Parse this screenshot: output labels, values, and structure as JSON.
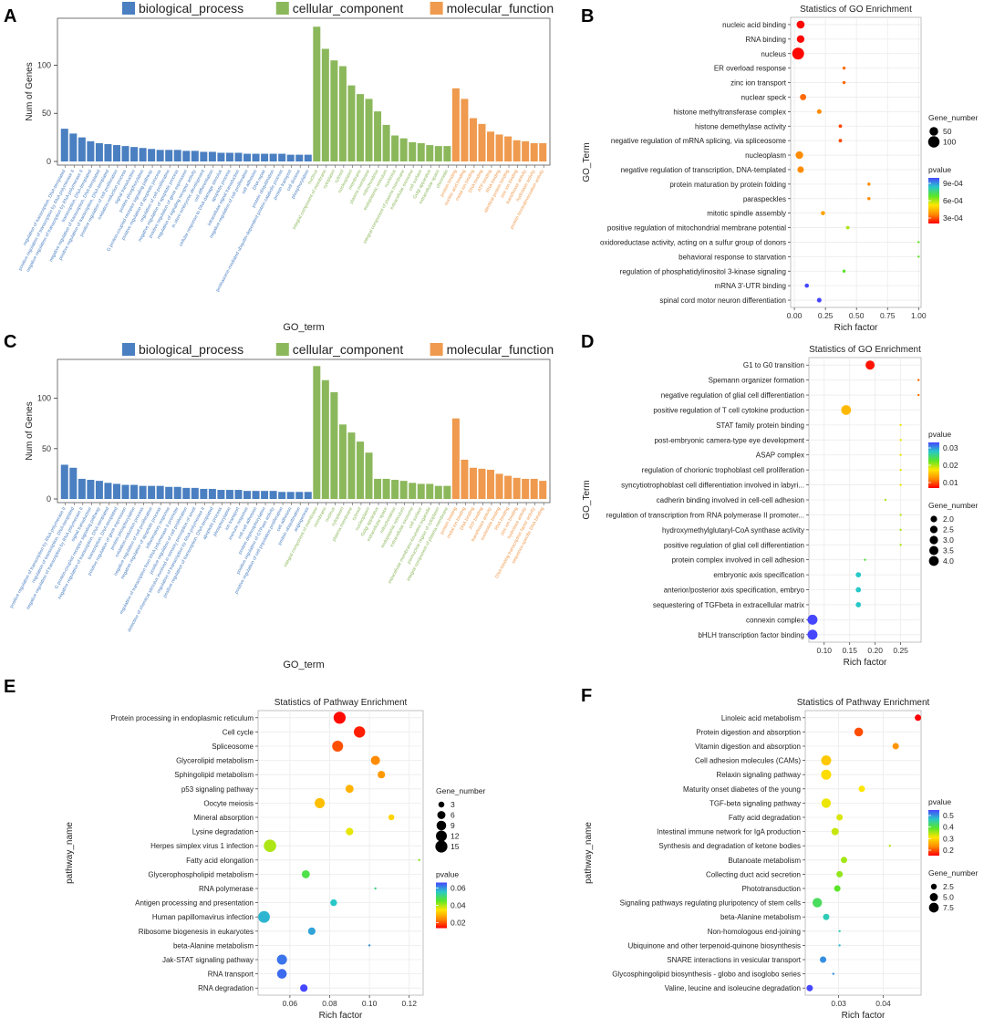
{
  "colors": {
    "biological_process": "#4a7fc1",
    "cellular_component": "#8cb85c",
    "molecular_function": "#ef9a4e",
    "panel_bg": "#ffffff",
    "grid": "#ebebeb",
    "pvalue_low": "#ff0000",
    "pvalue_high": "#2b2bff"
  },
  "chart_data": [
    {
      "id": "A",
      "panel_label": "A",
      "type": "bar",
      "xlabel": "GO_term",
      "ylabel": "Num of Genes",
      "ylim": [
        0,
        145
      ],
      "yticks": [
        0,
        50,
        100
      ],
      "legend": [
        "biological_process",
        "cellular_component",
        "molecular_function"
      ],
      "series": [
        {
          "name": "biological_process",
          "values": [
            34,
            29,
            25,
            21,
            19,
            18,
            17,
            16,
            15,
            14,
            13,
            12,
            12,
            12,
            11,
            11,
            10,
            10,
            9,
            9,
            9,
            8,
            8,
            8,
            8,
            8,
            7,
            7,
            7
          ]
        },
        {
          "name": "cellular_component",
          "values": [
            140,
            117,
            105,
            99,
            79,
            70,
            65,
            52,
            38,
            27,
            24,
            20,
            19,
            17,
            16,
            16
          ]
        },
        {
          "name": "molecular_function",
          "values": [
            76,
            65,
            45,
            39,
            31,
            28,
            26,
            22,
            21,
            19,
            19
          ]
        }
      ],
      "categories": {
        "biological_process": [
          "regulation of transcription, DNA-templated",
          "positive regulation of transcription by RNA polymerase II",
          "negative regulation of transcription by RNA polymerase II",
          "transcription, DNA-templated",
          "negative regulation of transcription, DNA-templated",
          "positive regulation of transcription, DNA-templated",
          "positive regulation of cell proliferation",
          "oxidation-reduction process",
          "signal transduction",
          "protein phosphorylation",
          "G protein-coupled receptor signaling pathway",
          "positive regulation of apoptotic process",
          "regulation of cell proliferation",
          "negative regulation of apoptotic process",
          "positive regulation of gene expression",
          "regulation of signaling receptor activity",
          "in utero embryonic development",
          "cell differentiation",
          "cellular response to DNA damage stimulus",
          "apoptotic process",
          "intracellular signal transduction",
          "negative regulation of cell proliferation",
          "cell adhesion",
          "DNA repair",
          "protein ubiquitination",
          "proteasome-mediated ubiquitin-dependent protein catabolic process",
          "protein transport",
          "cell division",
          "phosphorylation"
        ],
        "cellular_component": [
          "nucleus",
          "integral component of membrane",
          "cytoplasm",
          "cytosol",
          "nucleoplasm",
          "membrane",
          "plasma membrane",
          "mitochondrion",
          "endoplasmic reticulum",
          "nucleolus",
          "integral component of plasma membrane",
          "extracellular exosome",
          "cell surface",
          "Golgi apparatus",
          "extracellular space",
          "chromatin"
        ],
        "molecular_function": [
          "protein binding",
          "nucleic acid binding",
          "metal ion binding",
          "DNA binding",
          "ATP binding",
          "RNA binding",
          "identical protein binding",
          "zinc ion binding",
          "transferase activity",
          "hydrolase activity",
          "protein homodimerization activity"
        ]
      }
    },
    {
      "id": "B",
      "panel_label": "B",
      "type": "scatter",
      "title": "Statistics of GO Enrichment",
      "xlabel": "Rich factor",
      "ylabel": "GO_Term",
      "xlim": [
        -0.03,
        1.02
      ],
      "xticks": [
        "0.00",
        "0.25",
        "0.50",
        "0.75",
        "1.00"
      ],
      "size_legend_title": "Gene_number",
      "size_legend": [
        50,
        100
      ],
      "color_legend_title": "pvalue",
      "color_legend": [
        "9e-04",
        "6e-04",
        "3e-04"
      ],
      "color_range": [
        0.0,
        0.001
      ],
      "size_range": [
        1,
        110
      ],
      "terms": [
        "nucleic acid binding",
        "RNA binding",
        "nucleus",
        "ER overload response",
        "zinc ion transport",
        "nuclear speck",
        "histone methyltransferase complex",
        "histone demethylase activity",
        "negative regulation of mRNA splicing, via spliceosome",
        "nucleoplasm",
        "negative regulation of transcription, DNA-templated",
        "protein maturation by protein folding",
        "paraspeckles",
        "mitotic spindle assembly",
        "positive regulation of mitochondrial membrane potential",
        "oxidoreductase activity, acting on a sulfur group of donors",
        "behavioral response to starvation",
        "regulation of phosphatidylinositol 3-kinase signaling",
        "mRNA 3'-UTR binding",
        "spinal cord motor neuron differentiation"
      ],
      "rich_factor": [
        0.05,
        0.05,
        0.03,
        0.4,
        0.4,
        0.07,
        0.2,
        0.37,
        0.37,
        0.04,
        0.05,
        0.6,
        0.6,
        0.23,
        0.43,
        1.0,
        1.0,
        0.4,
        0.1,
        0.2
      ],
      "gene_number": [
        40,
        35,
        110,
        2,
        2,
        20,
        8,
        3,
        3,
        35,
        22,
        2,
        2,
        6,
        3,
        1,
        1,
        2,
        6,
        8
      ],
      "pvalue": [
        1e-05,
        1e-05,
        1e-05,
        0.00015,
        0.00015,
        0.00015,
        0.0002,
        0.0001,
        0.0001,
        0.0002,
        0.0002,
        0.0002,
        0.0002,
        0.00025,
        0.0005,
        0.0006,
        0.0006,
        0.0006,
        0.001,
        0.001
      ]
    },
    {
      "id": "C",
      "panel_label": "C",
      "type": "bar",
      "xlabel": "GO_term",
      "ylabel": "Num of Genes",
      "ylim": [
        0,
        135
      ],
      "yticks": [
        0,
        50,
        100
      ],
      "legend": [
        "biological_process",
        "cellular_component",
        "molecular_function"
      ],
      "series": [
        {
          "name": "biological_process",
          "values": [
            34,
            31,
            20,
            19,
            18,
            16,
            15,
            14,
            14,
            13,
            13,
            13,
            12,
            12,
            11,
            11,
            10,
            10,
            9,
            9,
            9,
            8,
            8,
            8,
            8,
            7,
            7,
            7,
            7
          ]
        },
        {
          "name": "cellular_component",
          "values": [
            132,
            118,
            106,
            74,
            66,
            57,
            46,
            20,
            20,
            19,
            18,
            16,
            15,
            15,
            13,
            13
          ]
        },
        {
          "name": "molecular_function",
          "values": [
            80,
            39,
            31,
            30,
            29,
            25,
            23,
            21,
            20,
            20,
            18
          ]
        }
      ],
      "categories": {
        "biological_process": [
          "positive regulation of transcription by RNA polymerase II",
          "regulation of transcription, DNA-templated",
          "negative regulation of transcription by RNA polymerase II",
          "signal transduction",
          "G protein-coupled receptor signaling pathway",
          "negative regulation of transcription, DNA-templated",
          "transcription, DNA-templated",
          "positive regulation of gene expression",
          "protein phosphorylation",
          "oxidation-reduction process",
          "negative regulation of cell proliferation",
          "negative regulation of apoptotic process",
          "inflammatory response",
          "regulation of transcription from RNA polymerase II promoter",
          "positive regulation of cell proliferation",
          "detection of chemical stimulus involved in sensory perception of smell",
          "regulation of transcription by RNA polymerase II",
          "positive regulation of transcription, DNA-templated",
          "apoptotic process",
          "phosphorylation",
          "ion transport",
          "immune response",
          "cell-cell adhesion",
          "protein dephosphorylation",
          "positive regulation of GTPase activity",
          "positive regulation of cell population proliferation",
          "cell adhesion",
          "protein ubiquitination",
          "angiogenesis"
        ],
        "cellular_component": [
          "integral component of membrane",
          "membrane",
          "nucleus",
          "cytoplasm",
          "plasma membrane",
          "cytosol",
          "nucleoplasm",
          "Golgi apparatus",
          "extracellular space",
          "mitochondrion",
          "endoplasmic reticulum",
          "extracellular exosome",
          "cell surface",
          "intracellular membrane-bounded organelle",
          "perinuclear region of cytoplasm",
          "integral component of plasma membrane"
        ],
        "molecular_function": [
          "protein binding",
          "metal ion binding",
          "DNA binding",
          "ATP binding",
          "transferase activity",
          "nucleotide binding",
          "RNA binding",
          "zinc ion binding",
          "hydrolase activity",
          "DNA-binding transcription factor activity",
          "sequence-specific DNA binding"
        ]
      }
    },
    {
      "id": "D",
      "panel_label": "D",
      "type": "scatter",
      "title": "Statistics of GO Enrichment",
      "xlabel": "Rich factor",
      "ylabel": "GO_Term",
      "xlim": [
        0.07,
        0.29
      ],
      "xticks": [
        "0.10",
        "0.15",
        "0.20",
        "0.25"
      ],
      "color_legend_title": "pvalue",
      "color_legend": [
        "0.03",
        "0.02",
        "0.01"
      ],
      "color_range": [
        0.0,
        0.04
      ],
      "size_legend_title": "Gene_number",
      "size_legend": [
        "2.0",
        "2.5",
        "3.0",
        "3.5",
        "4.0"
      ],
      "size_range": [
        1,
        4.2
      ],
      "terms": [
        "G1 to G0 transition",
        "Spemann organizer formation",
        "negative regulation of glial cell differentiation",
        "positive regulation of T cell cytokine production",
        "STAT family protein binding",
        "post-embryonic camera-type eye development",
        "ASAP complex",
        "regulation of chorionic trophoblast cell proliferation",
        "syncytiotrophoblast cell differentiation involved in labyri...",
        "cadherin binding involved in cell-cell adhesion",
        "regulation of transcription from RNA polymerase II promoter...",
        "hydroxymethylglutaryl-CoA synthase activity",
        "positive regulation of glial cell differentiation",
        "protein complex involved in cell adhesion",
        "embryonic axis specification",
        "anterior/posterior axis specification, embryo",
        "sequestering of TGFbeta in extracellular matrix",
        "connexin complex",
        "bHLH transcription factor binding"
      ],
      "rich_factor": [
        0.19,
        0.285,
        0.285,
        0.143,
        0.25,
        0.25,
        0.25,
        0.25,
        0.25,
        0.22,
        0.25,
        0.25,
        0.25,
        0.18,
        0.167,
        0.167,
        0.167,
        0.077,
        0.077
      ],
      "gene_number": [
        3.5,
        1.0,
        1.0,
        4.0,
        1.0,
        1.0,
        1.0,
        1.0,
        1.0,
        1.0,
        1.0,
        1.0,
        1.0,
        1.0,
        1.5,
        1.5,
        1.5,
        4.2,
        4.2
      ],
      "pvalue": [
        0.001,
        0.006,
        0.006,
        0.012,
        0.017,
        0.017,
        0.017,
        0.017,
        0.017,
        0.02,
        0.02,
        0.02,
        0.02,
        0.025,
        0.032,
        0.032,
        0.032,
        0.04,
        0.04
      ]
    },
    {
      "id": "E",
      "panel_label": "E",
      "type": "scatter",
      "title": "Statistics of Pathway Enrichment",
      "xlabel": "Rich factor",
      "ylabel": "pathway_name",
      "xlim": [
        0.044,
        0.127
      ],
      "xticks": [
        "0.06",
        "0.08",
        "0.10",
        "0.12"
      ],
      "size_legend_title": "Gene_number",
      "size_legend": [
        3,
        6,
        9,
        12,
        15
      ],
      "size_range": [
        1,
        16
      ],
      "color_legend_title": "pvalue",
      "color_legend": [
        "0.06",
        "0.04",
        "0.02"
      ],
      "color_range": [
        0.0,
        0.07
      ],
      "terms": [
        "Protein processing in endoplasmic reticulum",
        "Cell cycle",
        "Spliceosome",
        "Glycerolipid metabolism",
        "Sphingolipid metabolism",
        "p53 signaling pathway",
        "Oocyte meiosis",
        "Mineral absorption",
        "Lysine degradation",
        "Herpes simplex virus 1 infection",
        "Fatty acid elongation",
        "Glycerophospholipid metabolism",
        "RNA polymerase",
        "Antigen processing and presentation",
        "Human papillomavirus infection",
        "Ribosome biogenesis in eukaryotes",
        "beta-Alanine metabolism",
        "Jak-STAT signaling pathway",
        "RNA transport",
        "RNA degradation"
      ],
      "rich_factor": [
        0.085,
        0.095,
        0.084,
        0.103,
        0.106,
        0.09,
        0.075,
        0.111,
        0.09,
        0.05,
        0.125,
        0.068,
        0.103,
        0.082,
        0.047,
        0.071,
        0.1,
        0.056,
        0.056,
        0.067
      ],
      "gene_number": [
        15,
        13,
        12,
        8,
        5,
        6,
        10,
        3,
        5,
        16,
        1,
        6,
        1,
        4,
        14,
        5,
        1,
        10,
        9,
        5
      ],
      "pvalue": [
        0.001,
        0.003,
        0.008,
        0.014,
        0.016,
        0.02,
        0.022,
        0.025,
        0.03,
        0.035,
        0.038,
        0.045,
        0.05,
        0.056,
        0.058,
        0.06,
        0.062,
        0.065,
        0.066,
        0.07
      ]
    },
    {
      "id": "F",
      "panel_label": "F",
      "type": "scatter",
      "title": "Statistics of Pathway Enrichment",
      "xlabel": "Rich factor",
      "ylabel": "pathway_name",
      "xlim": [
        0.0225,
        0.0485
      ],
      "xticks": [
        "0.03",
        "0.04"
      ],
      "color_legend_title": "pvalue",
      "color_legend": [
        "0.5",
        "0.4",
        "0.3",
        "0.2"
      ],
      "color_range": [
        0.15,
        0.6
      ],
      "size_legend_title": "Gene_number",
      "size_legend": [
        "2.5",
        "5.0",
        "7.5"
      ],
      "size_range": [
        1,
        9
      ],
      "terms": [
        "Linoleic acid metabolism",
        "Protein digestion and absorption",
        "Vitamin digestion and absorption",
        "Cell adhesion molecules (CAMs)",
        "Relaxin signaling pathway",
        "Maturity onset diabetes of the young",
        "TGF-beta signaling pathway",
        "Fatty acid degradation",
        "Intestinal immune network for IgA production",
        "Synthesis and degradation of ketone bodies",
        "Butanoate metabolism",
        "Collecting duct acid secretion",
        "Phototransduction",
        "Signaling pathways regulating pluripotency of stem cells",
        "beta-Alanine metabolism",
        "Non-homologous end-joining",
        "Ubiquinone and other terpenoid-quinone biosynthesis",
        "SNARE interactions in vesicular transport",
        "Glycosphingolipid biosynthesis - globo and isoglobo series",
        "Valine, leucine and isoleucine degradation"
      ],
      "rich_factor": [
        0.0478,
        0.0345,
        0.0428,
        0.0272,
        0.0272,
        0.0352,
        0.0272,
        0.0302,
        0.0292,
        0.0415,
        0.0312,
        0.0302,
        0.0297,
        0.0252,
        0.0272,
        0.0302,
        0.0302,
        0.0265,
        0.0288,
        0.0235
      ],
      "gene_number": [
        3,
        6,
        3,
        8,
        8,
        3,
        7,
        3,
        4,
        1,
        3,
        3,
        3,
        7,
        3,
        1,
        1,
        3,
        1,
        3
      ],
      "pvalue": [
        0.15,
        0.2,
        0.25,
        0.3,
        0.32,
        0.33,
        0.34,
        0.35,
        0.36,
        0.37,
        0.38,
        0.39,
        0.42,
        0.45,
        0.5,
        0.5,
        0.52,
        0.55,
        0.55,
        0.6
      ]
    }
  ]
}
